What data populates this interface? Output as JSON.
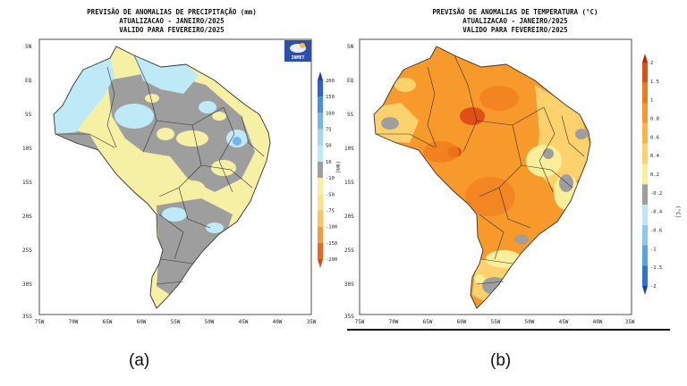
{
  "panels": [
    {
      "id": "a",
      "title_lines": [
        "PREVISÃO DE ANOMALIAS DE PRECIPITAÇÃO (mm)",
        "ATUALIZACAO - JANEIRO/2025",
        "VALIDO PARA FEVEREIRO/2025"
      ],
      "caption": "(a)",
      "logo_text": "INMET",
      "legend_unit": "(mm)",
      "legend_ticks": [
        "200",
        "150",
        "100",
        "75",
        "50",
        "10",
        "-10",
        "-50",
        "-75",
        "-100",
        "-150",
        "-200"
      ],
      "legend_colors": [
        "#1c3fb4",
        "#2d62d0",
        "#4b8ee0",
        "#78b4ec",
        "#a6d6f3",
        "#bdeaf6",
        "#9e9e9e",
        "#f6f0a4",
        "#fde28a",
        "#f7c461",
        "#f29b3c",
        "#e86a1f",
        "#d94412"
      ]
    },
    {
      "id": "b",
      "title_lines": [
        "PREVISÃO DE ANOMALIAS DE TEMPERATURA (°C)",
        "ATUALIZACAO - JANEIRO/2025",
        "VALIDO PARA FEVEREIRO/2025"
      ],
      "caption": "(b)",
      "legend_unit": "(°C)",
      "legend_ticks": [
        "2",
        "1.5",
        "1",
        "0.8",
        "0.6",
        "0.4",
        "0.2",
        "-0.2",
        "-0.4",
        "-0.6",
        "-1",
        "-1.5",
        "-2"
      ],
      "legend_colors": [
        "#c01d0e",
        "#e05016",
        "#f07a1e",
        "#f79a2b",
        "#fbb545",
        "#fdd26c",
        "#f9ef9a",
        "#9e9e9e",
        "#bfe6f5",
        "#8dc7ec",
        "#5aa3e1",
        "#2f71cf",
        "#1b3fae"
      ]
    }
  ],
  "axes": {
    "lat_labels": [
      "5N",
      "EQ",
      "5S",
      "10S",
      "15S",
      "20S",
      "25S",
      "30S",
      "35S"
    ],
    "lon_labels": [
      "75W",
      "70W",
      "65W",
      "60W",
      "55W",
      "50W",
      "45W",
      "40W",
      "35W"
    ]
  }
}
